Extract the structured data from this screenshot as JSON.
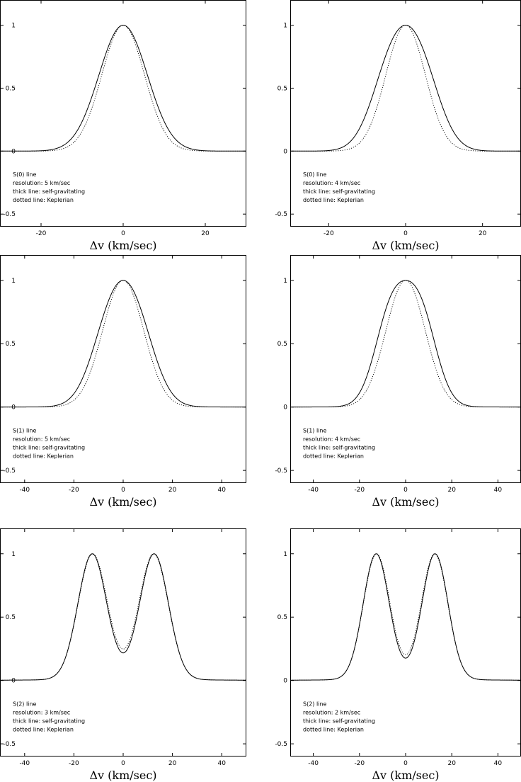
{
  "chart_data": [
    {
      "type": "line",
      "panel": "top-left",
      "xlabel": "Δv (km/sec)",
      "xlim": [
        -30,
        30
      ],
      "ylim": [
        -0.6,
        1.2
      ],
      "xticks": [
        -20,
        0,
        20
      ],
      "yticks": [
        -0.5,
        0,
        0.5,
        1
      ],
      "xticklabels": [
        "-20",
        "0",
        "20"
      ],
      "yticklabels": [
        "-0.5",
        "0",
        "0.5",
        "1"
      ],
      "annotations": [
        "S(0) line",
        "resolution: 5 km/sec",
        "thick line: self-gravitating",
        "dotted line: Keplerian"
      ],
      "grid": false,
      "series": [
        {
          "style": "solid",
          "profile": {
            "sep": 2.0,
            "sig": 5.5,
            "wing": 5.4,
            "res": 0.02,
            "mw": 0.45
          }
        },
        {
          "style": "dotted",
          "profile": {
            "sep": 0.0,
            "sig": 5.2,
            "wing": 5.0,
            "res": 0.02,
            "mw": 0.35
          }
        }
      ]
    },
    {
      "type": "line",
      "panel": "top-right",
      "xlabel": "Δv (km/sec)",
      "xlim": [
        -30,
        30
      ],
      "ylim": [
        -0.6,
        1.2
      ],
      "xticks": [
        -20,
        0,
        20
      ],
      "yticks": [
        -0.5,
        0,
        0.5,
        1
      ],
      "xticklabels": [
        "-20",
        "0",
        "20"
      ],
      "yticklabels": [
        "-0.5",
        "0",
        "0.5",
        "1"
      ],
      "annotations": [
        "S(0) line",
        "resolution: 4 km/sec",
        "thick line: self-gravitating",
        "dotted line: Keplerian"
      ],
      "grid": false,
      "series": [
        {
          "style": "solid",
          "profile": {
            "sep": 3.6,
            "sig": 5.2,
            "wing": 5.0,
            "res": 0.02,
            "mw": 0.45
          }
        },
        {
          "style": "dotted",
          "profile": {
            "sep": 1.5,
            "sig": 4.9,
            "wing": 4.8,
            "res": 0.02,
            "mw": 0.35
          }
        }
      ]
    },
    {
      "type": "line",
      "panel": "middle-left",
      "xlabel": "Δv (km/sec)",
      "xlim": [
        -50,
        50
      ],
      "ylim": [
        -0.6,
        1.2
      ],
      "xticks": [
        -40,
        -20,
        0,
        20,
        40
      ],
      "yticks": [
        -0.5,
        0,
        0.5,
        1
      ],
      "xticklabels": [
        "-40",
        "-20",
        "0",
        "20",
        "40"
      ],
      "yticklabels": [
        "-0.5",
        "0",
        "0.5",
        "1"
      ],
      "annotations": [
        "S(1) line",
        "resolution: 5 km/sec",
        "thick line: self-gravitating",
        "dotted line: Keplerian"
      ],
      "grid": false,
      "series": [
        {
          "style": "solid",
          "profile": {
            "sep": 5.0,
            "sig": 7.9,
            "wing": 9.0,
            "res": 0.04,
            "mw": 0.45
          }
        },
        {
          "style": "dotted",
          "profile": {
            "sep": 3.0,
            "sig": 7.7,
            "wing": 8.8,
            "res": 0.04,
            "mw": 0.38
          }
        }
      ]
    },
    {
      "type": "line",
      "panel": "middle-right",
      "xlabel": "Δv (km/sec)",
      "xlim": [
        -50,
        50
      ],
      "ylim": [
        -0.6,
        1.2
      ],
      "xticks": [
        -40,
        -20,
        0,
        20,
        40
      ],
      "yticks": [
        -0.5,
        0,
        0.5,
        1
      ],
      "xticklabels": [
        "-40",
        "-20",
        "0",
        "20",
        "40"
      ],
      "yticklabels": [
        "-0.5",
        "0",
        "0.5",
        "1"
      ],
      "annotations": [
        "S(1) line",
        "resolution: 4 km/sec",
        "thick line: self-gravitating",
        "dotted line: Keplerian"
      ],
      "grid": false,
      "series": [
        {
          "style": "solid",
          "profile": {
            "sep": 6.2,
            "sig": 7.1,
            "wing": 8.8,
            "res": 0.04,
            "mw": 0.45
          }
        },
        {
          "style": "dotted",
          "profile": {
            "sep": 3.5,
            "sig": 7.6,
            "wing": 8.6,
            "res": 0.04,
            "mw": 0.38
          }
        }
      ]
    },
    {
      "type": "line",
      "panel": "bottom-left",
      "xlabel": "Δv (km/sec)",
      "xlim": [
        -50,
        50
      ],
      "ylim": [
        -0.6,
        1.2
      ],
      "xticks": [
        -40,
        -20,
        0,
        20,
        40
      ],
      "yticks": [
        -0.5,
        0,
        0.5,
        1
      ],
      "xticklabels": [
        "-40",
        "-20",
        "0",
        "20",
        "40"
      ],
      "yticklabels": [
        "-0.5",
        "0",
        "0.5",
        "1"
      ],
      "annotations": [
        "S(2) line",
        "resolution: 3 km/sec",
        "thick line: self-gravitating",
        "dotted line: Keplerian"
      ],
      "grid": false,
      "series": [
        {
          "style": "solid",
          "profile": {
            "sep": 12.6,
            "sig": 5.8,
            "wing": 14.0,
            "res": 0.07,
            "mw": 0.5
          }
        },
        {
          "style": "dotted",
          "profile": {
            "sep": 12.4,
            "sig": 5.9,
            "wing": 14.0,
            "res": 0.07,
            "mw": 0.5
          }
        }
      ]
    },
    {
      "type": "line",
      "panel": "bottom-right",
      "xlabel": "Δv (km/sec)",
      "xlim": [
        -50,
        50
      ],
      "ylim": [
        -0.6,
        1.2
      ],
      "xticks": [
        -40,
        -20,
        0,
        20,
        40
      ],
      "yticks": [
        -0.5,
        0,
        0.5,
        1
      ],
      "xticklabels": [
        "-40",
        "-20",
        "0",
        "20",
        "40"
      ],
      "yticklabels": [
        "-0.5",
        "0",
        "0.5",
        "1"
      ],
      "annotations": [
        "S(2) line",
        "resolution: 2 km/sec",
        "thick line: self-gravitating",
        "dotted line: Keplerian"
      ],
      "grid": false,
      "series": [
        {
          "style": "solid",
          "profile": {
            "sep": 12.8,
            "sig": 5.6,
            "wing": 14.0,
            "res": 0.07,
            "mw": 0.5
          }
        },
        {
          "style": "dotted",
          "profile": {
            "sep": 12.6,
            "sig": 5.7,
            "wing": 14.0,
            "res": 0.07,
            "mw": 0.5
          }
        }
      ]
    }
  ]
}
